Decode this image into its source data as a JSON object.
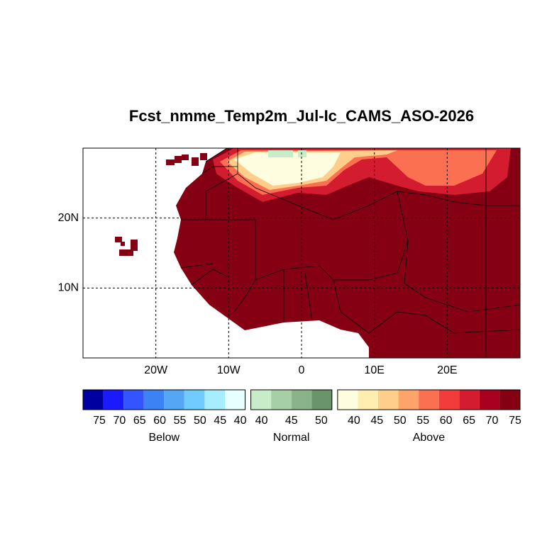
{
  "map": {
    "title": "Fcst_nmme_Temp2m_Jul-Ic_CAMS_ASO-2026",
    "xlim": [
      -30,
      30
    ],
    "ylim": [
      0,
      30
    ],
    "xticks": [
      {
        "value": -20,
        "label": "20W"
      },
      {
        "value": -10,
        "label": "10W"
      },
      {
        "value": 0,
        "label": "0"
      },
      {
        "value": 10,
        "label": "10E"
      },
      {
        "value": 20,
        "label": "20E"
      }
    ],
    "yticks": [
      {
        "value": 10,
        "label": "10N"
      },
      {
        "value": 20,
        "label": "20N"
      }
    ],
    "grid": true,
    "legend": [
      {
        "label": "Below",
        "colors": [
          "#0000a0",
          "#1a1aff",
          "#3355ff",
          "#3d82f5",
          "#55a6f5",
          "#70ccff",
          "#a6edff",
          "#e8ffff"
        ],
        "levels": [
          75,
          70,
          65,
          60,
          55,
          50,
          45,
          40
        ]
      },
      {
        "label": "Normal",
        "colors": [
          "#c8ecc8",
          "#a6cfa6",
          "#8ab38a",
          "#6a946a"
        ],
        "levels": [
          40,
          45,
          50
        ]
      },
      {
        "label": "Above",
        "colors": [
          "#fffde0",
          "#ffeeb0",
          "#fece8a",
          "#fda46a",
          "#fb7050",
          "#f23c3c",
          "#d41c30",
          "#a8001e",
          "#860014"
        ],
        "levels": [
          40,
          45,
          50,
          55,
          60,
          65,
          70,
          75
        ]
      }
    ]
  }
}
